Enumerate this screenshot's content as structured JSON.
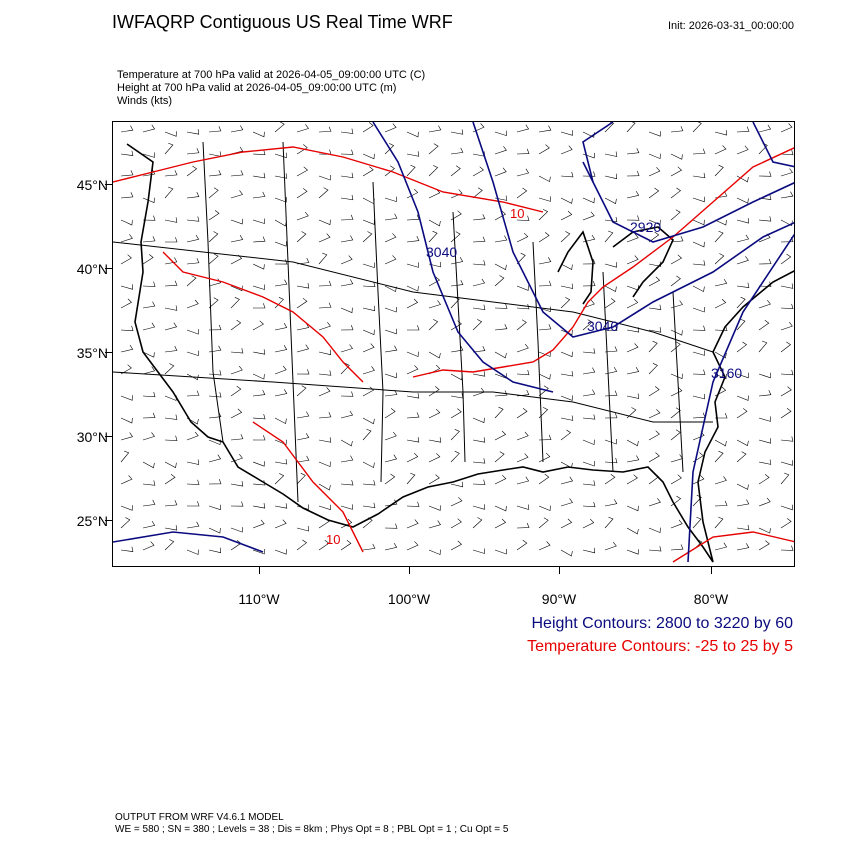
{
  "title": "IWFAQRP Contiguous US Real Time WRF",
  "init": "Init: 2026-03-31_00:00:00",
  "subtitles": [
    "Temperature at 700 hPa valid at 2026-04-05_09:00:00 UTC   (C)",
    "Height at 700 hPa valid at 2026-04-05_09:00:00 UTC   (m)",
    "Winds   (kts)"
  ],
  "lat_labels": [
    "45°N",
    "40°N",
    "35°N",
    "30°N",
    "25°N"
  ],
  "lon_labels": [
    "110°W",
    "100°W",
    "90°W",
    "80°W"
  ],
  "contour_labels": {
    "height": [
      "3040",
      "2920",
      "3040",
      "3160"
    ],
    "temperature": [
      "10",
      "10"
    ]
  },
  "legend": {
    "height": "Height Contours: 2800 to 3220 by 60",
    "temperature": "Temperature Contours: -25 to 25 by 5"
  },
  "colors": {
    "height_contour": "#0b0b80",
    "temperature_contour": "#e60000",
    "map_lines": "#000000"
  },
  "footer": [
    "OUTPUT FROM WRF V4.6.1 MODEL",
    "WE = 580 ; SN = 380 ; Levels = 38 ; Dis = 8km ; Phys Opt = 8 ; PBL Opt = 1 ; Cu Opt = 5"
  ]
}
